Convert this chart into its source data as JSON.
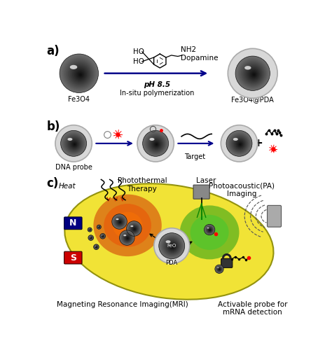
{
  "bg_color": "#ffffff",
  "panel_a_label": "a)",
  "panel_b_label": "b)",
  "panel_c_label": "c)",
  "fe3o4_label": "Fe3O4",
  "insitu_label": "In-situ polymerization",
  "fe3o4pda_label": "Fe3O4@PDA",
  "dopamine_label": "Dopamine",
  "ph_label": "pH 8.5",
  "dna_probe_label": "DNA probe",
  "target_label": "Target",
  "photothermal_label": "Photothermal\nTherapy",
  "laser_label": "Laser",
  "photoacoustic_label": "Photoacoustic(PA)\nImaging",
  "heat_label": "Heat",
  "mri_label": "Magneting Resonance Imaging(MRI)",
  "probe_label": "Activable probe for\nmRNA detection",
  "pda_label": "PDA",
  "arrow_color": "#00008B",
  "magnet_n_color": "#000080",
  "magnet_s_color": "#cc0000"
}
